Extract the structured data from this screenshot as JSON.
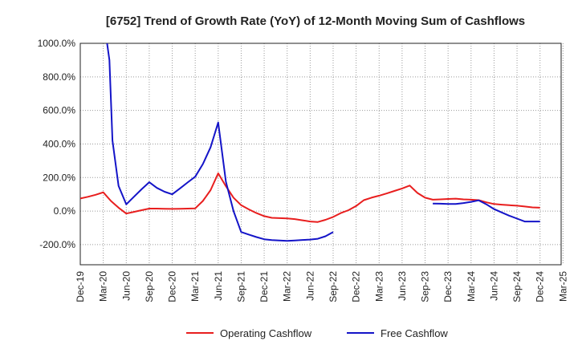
{
  "chart_data": {
    "type": "line",
    "title": "[6752]  Trend of Growth Rate (YoY) of 12-Month Moving Sum of Cashflows",
    "xlabel": "",
    "ylabel": "",
    "ylim": [
      -320,
      1000
    ],
    "yticks": [
      1000,
      800,
      600,
      400,
      200,
      0,
      -200
    ],
    "ytick_labels": [
      "1000.0%",
      "800.0%",
      "600.0%",
      "400.0%",
      "200.0%",
      "0.0%",
      "-200.0%"
    ],
    "x_ticks": [
      "Dec-19",
      "Mar-20",
      "Jun-20",
      "Sep-20",
      "Dec-20",
      "Mar-21",
      "Jun-21",
      "Sep-21",
      "Dec-21",
      "Mar-22",
      "Jun-22",
      "Sep-22",
      "Dec-22",
      "Mar-23",
      "Jun-23",
      "Sep-23",
      "Dec-23",
      "Mar-24",
      "Jun-24",
      "Sep-24",
      "Dec-24",
      "Mar-25"
    ],
    "grid": true,
    "legend_position": "bottom",
    "series": [
      {
        "name": "Operating Cashflow",
        "color": "#e81e1e",
        "points": [
          [
            0,
            75
          ],
          [
            1,
            85
          ],
          [
            2,
            97
          ],
          [
            3,
            112
          ],
          [
            4,
            60
          ],
          [
            5,
            20
          ],
          [
            6,
            -15
          ],
          [
            7,
            -5
          ],
          [
            8,
            5
          ],
          [
            9,
            15
          ],
          [
            10,
            15
          ],
          [
            11,
            14
          ],
          [
            12,
            13
          ],
          [
            13,
            14
          ],
          [
            14,
            15
          ],
          [
            15,
            16
          ],
          [
            16,
            60
          ],
          [
            17,
            125
          ],
          [
            18,
            225
          ],
          [
            19,
            148
          ],
          [
            20,
            80
          ],
          [
            21,
            35
          ],
          [
            22,
            10
          ],
          [
            23,
            -12
          ],
          [
            24,
            -30
          ],
          [
            25,
            -40
          ],
          [
            26,
            -42
          ],
          [
            27,
            -44
          ],
          [
            28,
            -48
          ],
          [
            29,
            -55
          ],
          [
            30,
            -62
          ],
          [
            31,
            -65
          ],
          [
            32,
            -52
          ],
          [
            33,
            -35
          ],
          [
            34,
            -12
          ],
          [
            35,
            5
          ],
          [
            36,
            30
          ],
          [
            37,
            65
          ],
          [
            38,
            80
          ],
          [
            39,
            92
          ],
          [
            40,
            105
          ],
          [
            41,
            120
          ],
          [
            42,
            135
          ],
          [
            43,
            152
          ],
          [
            44,
            108
          ],
          [
            45,
            80
          ],
          [
            46,
            68
          ],
          [
            47,
            70
          ],
          [
            48,
            72
          ],
          [
            49,
            74
          ],
          [
            50,
            70
          ],
          [
            51,
            68
          ],
          [
            52,
            65
          ],
          [
            53,
            52
          ],
          [
            54,
            42
          ],
          [
            55,
            38
          ],
          [
            56,
            35
          ],
          [
            57,
            32
          ],
          [
            58,
            27
          ],
          [
            59,
            22
          ],
          [
            60,
            20
          ]
        ]
      },
      {
        "name": "Free Cashflow",
        "color": "#1414c8",
        "segments": [
          [
            [
              3.5,
              1000
            ],
            [
              3.8,
              900
            ],
            [
              4.2,
              420
            ],
            [
              5,
              150
            ],
            [
              6,
              40
            ],
            [
              7,
              85
            ],
            [
              8,
              130
            ],
            [
              9,
              172
            ],
            [
              10,
              138
            ],
            [
              11,
              115
            ],
            [
              12,
              100
            ],
            [
              13,
              135
            ],
            [
              14,
              170
            ],
            [
              15,
              205
            ],
            [
              16,
              280
            ],
            [
              17,
              380
            ],
            [
              18,
              528
            ],
            [
              19,
              175
            ],
            [
              20,
              0
            ],
            [
              21,
              -125
            ],
            [
              22,
              -140
            ],
            [
              23,
              -155
            ],
            [
              24,
              -168
            ],
            [
              25,
              -173
            ],
            [
              26,
              -175
            ],
            [
              27,
              -178
            ],
            [
              28,
              -175
            ],
            [
              29,
              -172
            ],
            [
              30,
              -170
            ],
            [
              31,
              -165
            ],
            [
              32,
              -150
            ],
            [
              33,
              -125
            ]
          ],
          [
            [
              46,
              45
            ],
            [
              47,
              44
            ],
            [
              48,
              42
            ],
            [
              49,
              42
            ],
            [
              50,
              48
            ],
            [
              51,
              55
            ],
            [
              52,
              64
            ],
            [
              53,
              40
            ],
            [
              54,
              12
            ],
            [
              55,
              -8
            ],
            [
              56,
              -28
            ],
            [
              57,
              -45
            ],
            [
              58,
              -62
            ],
            [
              59,
              -62
            ],
            [
              60,
              -62
            ]
          ]
        ]
      }
    ]
  }
}
